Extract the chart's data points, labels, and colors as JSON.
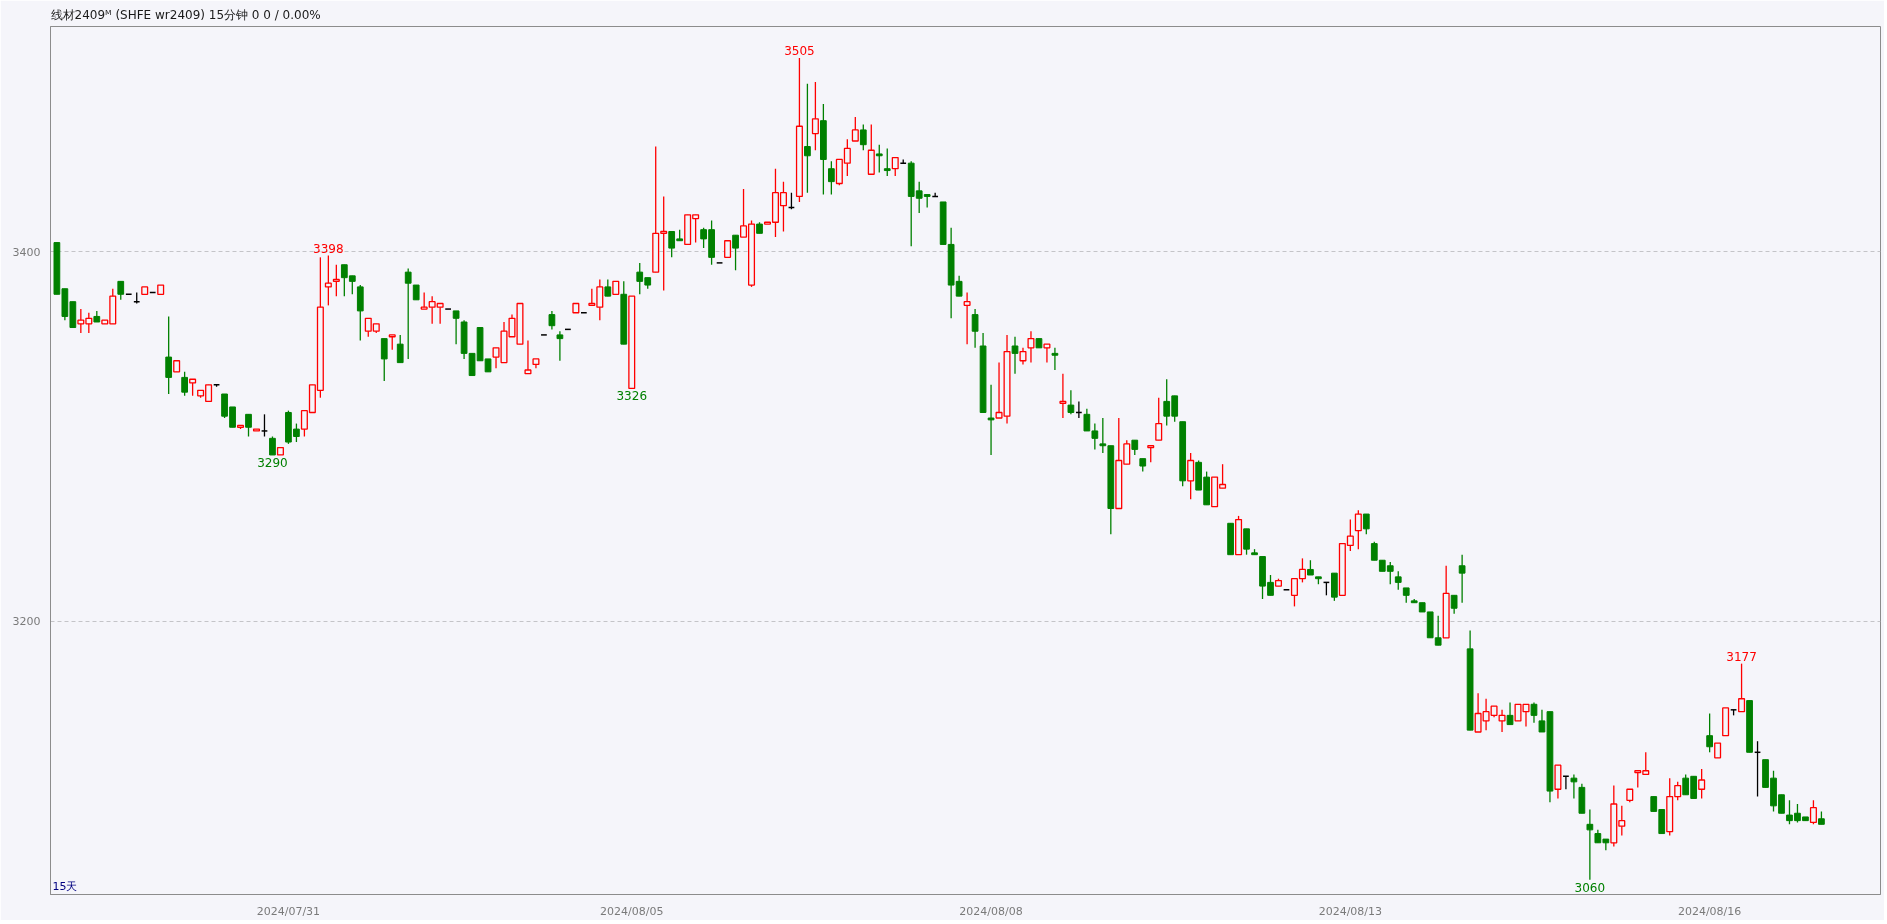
{
  "chart_data": {
    "type": "candlestick",
    "title": "线材2409ᴹ (SHFE wr2409)  15分钟   0   0 / 0.00%",
    "categories": [
      null,
      null,
      null,
      null,
      null,
      null,
      null,
      null,
      null,
      null,
      null,
      null,
      null,
      null,
      null,
      null,
      null,
      null,
      null,
      null,
      null,
      null,
      null,
      null,
      null,
      null,
      null,
      null,
      null,
      "2024/07/31",
      null,
      null,
      null,
      null,
      null,
      null,
      null,
      null,
      null,
      null,
      null,
      null,
      null,
      null,
      null,
      null,
      null,
      null,
      null,
      null,
      null,
      null,
      null,
      null,
      null,
      null,
      null,
      null,
      null,
      null,
      null,
      null,
      null,
      null,
      null,
      null,
      null,
      null,
      null,
      null,
      null,
      null,
      "2024/08/05",
      null,
      null,
      null,
      null,
      null,
      null,
      null,
      null,
      null,
      null,
      null,
      null,
      null,
      null,
      null,
      null,
      null,
      null,
      null,
      null,
      null,
      null,
      null,
      null,
      null,
      null,
      null,
      null,
      null,
      null,
      null,
      null,
      null,
      null,
      null,
      null,
      null,
      null,
      null,
      null,
      null,
      null,
      null,
      null,
      "2024/08/08",
      null,
      null,
      null,
      null,
      null,
      null,
      null,
      null,
      null,
      null,
      null,
      null,
      null,
      null,
      null,
      null,
      null,
      null,
      null,
      null,
      null,
      null,
      null,
      null,
      null,
      null,
      null,
      null,
      null,
      null,
      null,
      null,
      null,
      null,
      null,
      null,
      null,
      null,
      null,
      null,
      null,
      null,
      null,
      null,
      "2024/08/13",
      null,
      null,
      null,
      null,
      null,
      null,
      null,
      null,
      null,
      null,
      null,
      null,
      null,
      null,
      null,
      null,
      null,
      null,
      null,
      null,
      null,
      null,
      null,
      null,
      null,
      null,
      null,
      null,
      null,
      null,
      null,
      null,
      null,
      null,
      null,
      null,
      null,
      null,
      null,
      null,
      null,
      null,
      null,
      null,
      "2024/08/16",
      null,
      null,
      null,
      null,
      null,
      null,
      null,
      null,
      null,
      null,
      null,
      null,
      null,
      null
    ],
    "ohlc": [
      [
        3405,
        3405,
        3377,
        3377
      ],
      [
        3380,
        3380,
        3363,
        3365
      ],
      [
        3373,
        3373,
        3359,
        3359
      ],
      [
        3361,
        3369,
        3356,
        3363
      ],
      [
        3361,
        3367,
        3356,
        3364
      ],
      [
        3365,
        3368,
        3362,
        3362
      ],
      [
        3361,
        3363,
        3361,
        3363
      ],
      [
        3361,
        3380,
        3361,
        3376
      ],
      [
        3384,
        3384,
        3374,
        3377
      ],
      [
        3377,
        3377,
        3377,
        3377
      ],
      [
        3373,
        3378,
        3372,
        3373
      ],
      [
        3377,
        3381,
        3377,
        3381
      ],
      [
        3378,
        3378,
        3378,
        3378
      ],
      [
        3377,
        3382,
        3377,
        3382
      ],
      [
        3343,
        3365,
        3323,
        3332
      ],
      [
        3335,
        3341,
        3335,
        3341
      ],
      [
        3332,
        3335,
        3322,
        3324
      ],
      [
        3329,
        3331,
        3322,
        3331
      ],
      [
        3322,
        3325,
        3321,
        3325
      ],
      [
        3319,
        3328,
        3319,
        3328
      ],
      [
        3328,
        3328,
        3327,
        3328
      ],
      [
        3323,
        3323,
        3310,
        3311
      ],
      [
        3316,
        3316,
        3305,
        3305
      ],
      [
        3305,
        3306,
        3304,
        3306
      ],
      [
        3312,
        3312,
        3300,
        3305
      ],
      [
        3303,
        3304,
        3303,
        3304
      ],
      [
        3303,
        3312,
        3300,
        3303
      ],
      [
        3299,
        3300,
        3290,
        3290
      ],
      [
        3290,
        3294,
        3290,
        3294
      ],
      [
        3313,
        3314,
        3296,
        3297
      ],
      [
        3304,
        3307,
        3297,
        3300
      ],
      [
        3304,
        3314,
        3300,
        3314
      ],
      [
        3313,
        3328,
        3313,
        3328
      ],
      [
        3325,
        3397,
        3321,
        3370
      ],
      [
        3381,
        3398,
        3371,
        3383
      ],
      [
        3384,
        3393,
        3376,
        3385
      ],
      [
        3393,
        3393,
        3376,
        3386
      ],
      [
        3387,
        3387,
        3377,
        3384
      ],
      [
        3381,
        3382,
        3352,
        3368
      ],
      [
        3357,
        3364,
        3354,
        3364
      ],
      [
        3357,
        3361,
        3356,
        3361
      ],
      [
        3353,
        3353,
        3330,
        3342
      ],
      [
        3354,
        3355,
        3347,
        3355
      ],
      [
        3350,
        3355,
        3340,
        3340
      ],
      [
        3389,
        3391,
        3342,
        3383
      ],
      [
        3382,
        3382,
        3374,
        3374
      ],
      [
        3369,
        3378,
        3369,
        3370
      ],
      [
        3370,
        3376,
        3361,
        3373
      ],
      [
        3370,
        3372,
        3361,
        3372
      ],
      [
        3369,
        3369,
        3369,
        3369
      ],
      [
        3368,
        3368,
        3350,
        3364
      ],
      [
        3362,
        3363,
        3342,
        3345
      ],
      [
        3345,
        3345,
        3333,
        3333
      ],
      [
        3359,
        3359,
        3341,
        3341
      ],
      [
        3342,
        3342,
        3335,
        3335
      ],
      [
        3343,
        3348,
        3337,
        3348
      ],
      [
        3340,
        3362,
        3340,
        3357
      ],
      [
        3354,
        3366,
        3354,
        3364
      ],
      [
        3350,
        3372,
        3350,
        3372
      ],
      [
        3334,
        3352,
        3334,
        3336
      ],
      [
        3339,
        3342,
        3337,
        3342
      ],
      [
        3355,
        3355,
        3355,
        3355
      ],
      [
        3366,
        3368,
        3358,
        3360
      ],
      [
        3355,
        3357,
        3341,
        3353
      ],
      [
        3358,
        3358,
        3358,
        3358
      ],
      [
        3367,
        3372,
        3367,
        3372
      ],
      [
        3367,
        3367,
        3367,
        3367
      ],
      [
        3371,
        3380,
        3371,
        3372
      ],
      [
        3370,
        3385,
        3363,
        3381
      ],
      [
        3381,
        3385,
        3376,
        3376
      ],
      [
        3377,
        3384,
        3377,
        3384
      ],
      [
        3377,
        3384,
        3350,
        3350
      ],
      [
        3326,
        3376,
        3326,
        3376
      ],
      [
        3389,
        3394,
        3377,
        3384
      ],
      [
        3386,
        3386,
        3380,
        3382
      ],
      [
        3389,
        3457,
        3389,
        3410
      ],
      [
        3410,
        3430,
        3379,
        3411
      ],
      [
        3411,
        3411,
        3397,
        3402
      ],
      [
        3407,
        3412,
        3406,
        3406
      ],
      [
        3404,
        3420,
        3404,
        3420
      ],
      [
        3418,
        3420,
        3405,
        3420
      ],
      [
        3412,
        3413,
        3402,
        3407
      ],
      [
        3412,
        3417,
        3393,
        3397
      ],
      [
        3394,
        3394,
        3394,
        3394
      ],
      [
        3397,
        3406,
        3397,
        3406
      ],
      [
        3409,
        3409,
        3390,
        3402
      ],
      [
        3408,
        3434,
        3408,
        3414
      ],
      [
        3382,
        3417,
        3381,
        3415
      ],
      [
        3415,
        3416,
        3410,
        3410
      ],
      [
        3415,
        3416,
        3415,
        3416
      ],
      [
        3416,
        3445,
        3408,
        3432
      ],
      [
        3425,
        3438,
        3411,
        3432
      ],
      [
        3424,
        3432,
        3423,
        3424
      ],
      [
        3430,
        3505,
        3427,
        3468
      ],
      [
        3457,
        3491,
        3432,
        3452
      ],
      [
        3464,
        3492,
        3455,
        3472
      ],
      [
        3471,
        3480,
        3431,
        3450
      ],
      [
        3445,
        3449,
        3431,
        3438
      ],
      [
        3437,
        3450,
        3436,
        3450
      ],
      [
        3448,
        3461,
        3441,
        3456
      ],
      [
        3460,
        3473,
        3460,
        3466
      ],
      [
        3466,
        3469,
        3455,
        3458
      ],
      [
        3442,
        3469,
        3442,
        3455
      ],
      [
        3453,
        3458,
        3443,
        3452
      ],
      [
        3445,
        3456,
        3441,
        3444
      ],
      [
        3445,
        3451,
        3441,
        3451
      ],
      [
        3448,
        3450,
        3448,
        3448
      ],
      [
        3448,
        3449,
        3403,
        3430
      ],
      [
        3433,
        3438,
        3421,
        3429
      ],
      [
        3431,
        3431,
        3424,
        3430
      ],
      [
        3430,
        3432,
        3430,
        3430
      ],
      [
        3427,
        3427,
        3404,
        3404
      ],
      [
        3404,
        3413,
        3364,
        3382
      ],
      [
        3384,
        3387,
        3376,
        3376
      ],
      [
        3371,
        3378,
        3350,
        3373
      ],
      [
        3366,
        3369,
        3348,
        3357
      ],
      [
        3349,
        3356,
        3313,
        3313
      ],
      [
        3310,
        3328,
        3290,
        3309
      ],
      [
        3310,
        3340,
        3310,
        3313
      ],
      [
        3311,
        3355,
        3307,
        3346
      ],
      [
        3349,
        3354,
        3334,
        3345
      ],
      [
        3341,
        3348,
        3339,
        3346
      ],
      [
        3348,
        3357,
        3340,
        3353
      ],
      [
        3353,
        3353,
        3348,
        3348
      ],
      [
        3348,
        3350,
        3340,
        3350
      ],
      [
        3345,
        3348,
        3336,
        3344
      ],
      [
        3318,
        3334,
        3310,
        3319
      ],
      [
        3317,
        3325,
        3312,
        3313
      ],
      [
        3313,
        3319,
        3310,
        3313
      ],
      [
        3312,
        3315,
        3303,
        3303
      ],
      [
        3303,
        3307,
        3293,
        3299
      ],
      [
        3296,
        3310,
        3291,
        3295
      ],
      [
        3295,
        3295,
        3247,
        3261
      ],
      [
        3261,
        3310,
        3261,
        3287
      ],
      [
        3285,
        3298,
        3285,
        3296
      ],
      [
        3298,
        3298,
        3290,
        3293
      ],
      [
        3288,
        3288,
        3281,
        3284
      ],
      [
        3294,
        3295,
        3286,
        3295
      ],
      [
        3298,
        3321,
        3298,
        3307
      ],
      [
        3319,
        3331,
        3306,
        3311
      ],
      [
        3322,
        3322,
        3308,
        3311
      ],
      [
        3308,
        3308,
        3273,
        3276
      ],
      [
        3276,
        3291,
        3266,
        3287
      ],
      [
        3286,
        3287,
        3271,
        3271
      ],
      [
        3278,
        3281,
        3263,
        3263
      ],
      [
        3262,
        3278,
        3262,
        3278
      ],
      [
        3272,
        3285,
        3272,
        3274
      ],
      [
        3253,
        3253,
        3236,
        3236
      ],
      [
        3236,
        3257,
        3236,
        3255
      ],
      [
        3250,
        3250,
        3236,
        3239
      ],
      [
        3237,
        3239,
        3236,
        3236
      ],
      [
        3235,
        3235,
        3212,
        3219
      ],
      [
        3221,
        3225,
        3214,
        3214
      ],
      [
        3219,
        3223,
        3219,
        3222
      ],
      [
        3217,
        3217,
        3217,
        3217
      ],
      [
        3214,
        3223,
        3208,
        3223
      ],
      [
        3223,
        3234,
        3221,
        3228
      ],
      [
        3228,
        3233,
        3225,
        3225
      ],
      [
        3224,
        3224,
        3220,
        3223
      ],
      [
        3221,
        3221,
        3214,
        3221
      ],
      [
        3226,
        3226,
        3211,
        3213
      ],
      [
        3214,
        3242,
        3214,
        3242
      ],
      [
        3241,
        3255,
        3238,
        3246
      ],
      [
        3249,
        3260,
        3239,
        3258
      ],
      [
        3258,
        3258,
        3247,
        3250
      ],
      [
        3242,
        3243,
        3233,
        3233
      ],
      [
        3233,
        3233,
        3227,
        3227
      ],
      [
        3230,
        3232,
        3220,
        3227
      ],
      [
        3224,
        3227,
        3217,
        3221
      ],
      [
        3218,
        3218,
        3210,
        3214
      ],
      [
        3211,
        3212,
        3210,
        3210
      ],
      [
        3210,
        3210,
        3205,
        3205
      ],
      [
        3205,
        3205,
        3191,
        3191
      ],
      [
        3191,
        3203,
        3187,
        3187
      ],
      [
        3191,
        3230,
        3191,
        3215
      ],
      [
        3214,
        3214,
        3204,
        3207
      ],
      [
        3230,
        3236,
        3210,
        3226
      ],
      [
        3185,
        3195,
        3141,
        3141
      ],
      [
        3140,
        3161,
        3140,
        3150
      ],
      [
        3146,
        3158,
        3141,
        3151
      ],
      [
        3149,
        3154,
        3148,
        3154
      ],
      [
        3146,
        3152,
        3140,
        3149
      ],
      [
        3149,
        3156,
        3144,
        3144
      ],
      [
        3146,
        3155,
        3146,
        3155
      ],
      [
        3151,
        3155,
        3143,
        3155
      ],
      [
        3155,
        3156,
        3145,
        3149
      ],
      [
        3146,
        3152,
        3140,
        3140
      ],
      [
        3151,
        3151,
        3102,
        3108
      ],
      [
        3109,
        3122,
        3104,
        3122
      ],
      [
        3116,
        3116,
        3109,
        3116
      ],
      [
        3115,
        3117,
        3104,
        3113
      ],
      [
        3110,
        3112,
        3096,
        3096
      ],
      [
        3090,
        3098,
        3060,
        3087
      ],
      [
        3085,
        3087,
        3080,
        3080
      ],
      [
        3082,
        3082,
        3076,
        3080
      ],
      [
        3080,
        3111,
        3078,
        3101
      ],
      [
        3089,
        3100,
        3084,
        3092
      ],
      [
        3103,
        3109,
        3102,
        3109
      ],
      [
        3118,
        3119,
        3110,
        3119
      ],
      [
        3117,
        3129,
        3117,
        3119
      ],
      [
        3105,
        3105,
        3097,
        3097
      ],
      [
        3098,
        3098,
        3085,
        3085
      ],
      [
        3086,
        3115,
        3084,
        3105
      ],
      [
        3105,
        3113,
        3103,
        3111
      ],
      [
        3115,
        3117,
        3106,
        3106
      ],
      [
        3116,
        3116,
        3104,
        3104
      ],
      [
        3109,
        3120,
        3104,
        3114
      ],
      [
        3138,
        3150,
        3129,
        3132
      ],
      [
        3126,
        3134,
        3126,
        3134
      ],
      [
        3138,
        3153,
        3138,
        3153
      ],
      [
        3152,
        3152,
        3149,
        3152
      ],
      [
        3151,
        3177,
        3151,
        3158
      ],
      [
        3157,
        3157,
        3129,
        3129
      ],
      [
        3129,
        3135,
        3105,
        3129
      ],
      [
        3125,
        3125,
        3110,
        3110
      ],
      [
        3115,
        3119,
        3097,
        3100
      ],
      [
        3106,
        3106,
        3096,
        3096
      ],
      [
        3095,
        3103,
        3090,
        3092
      ],
      [
        3096,
        3101,
        3091,
        3092
      ],
      [
        3094,
        3094,
        3092,
        3092
      ],
      [
        3091,
        3103,
        3090,
        3099
      ],
      [
        3093,
        3097,
        3090,
        3090
      ]
    ],
    "colors": [
      "#008000",
      "#008000",
      "#008000",
      "#ff0000",
      "#ff0000",
      "#008000",
      "#ff0000",
      "#ff0000",
      "#008000",
      "#000000",
      "#000000",
      "#ff0000",
      "#000000",
      "#ff0000",
      "#008000",
      "#ff0000",
      "#008000",
      "#ff0000",
      "#ff0000",
      "#ff0000",
      "#000000",
      "#008000",
      "#008000",
      "#ff0000",
      "#008000",
      "#ff0000",
      "#000000",
      "#008000",
      "#ff0000",
      "#008000",
      "#008000",
      "#ff0000",
      "#ff0000",
      "#ff0000",
      "#ff0000",
      "#ff0000",
      "#008000",
      "#008000",
      "#008000",
      "#ff0000",
      "#ff0000",
      "#008000",
      "#ff0000",
      "#008000",
      "#008000",
      "#008000",
      "#ff0000",
      "#ff0000",
      "#ff0000",
      "#000000",
      "#008000",
      "#008000",
      "#008000",
      "#008000",
      "#008000",
      "#ff0000",
      "#ff0000",
      "#ff0000",
      "#ff0000",
      "#ff0000",
      "#ff0000",
      "#000000",
      "#008000",
      "#008000",
      "#000000",
      "#ff0000",
      "#000000",
      "#ff0000",
      "#ff0000",
      "#008000",
      "#ff0000",
      "#008000",
      "#ff0000",
      "#008000",
      "#008000",
      "#ff0000",
      "#ff0000",
      "#008000",
      "#008000",
      "#ff0000",
      "#ff0000",
      "#008000",
      "#008000",
      "#000000",
      "#ff0000",
      "#008000",
      "#ff0000",
      "#ff0000",
      "#008000",
      "#ff0000",
      "#ff0000",
      "#ff0000",
      "#000000",
      "#ff0000",
      "#008000",
      "#ff0000",
      "#008000",
      "#008000",
      "#ff0000",
      "#ff0000",
      "#ff0000",
      "#008000",
      "#ff0000",
      "#008000",
      "#008000",
      "#ff0000",
      "#000000",
      "#008000",
      "#008000",
      "#008000",
      "#000000",
      "#008000",
      "#008000",
      "#008000",
      "#ff0000",
      "#008000",
      "#008000",
      "#008000",
      "#ff0000",
      "#ff0000",
      "#008000",
      "#ff0000",
      "#ff0000",
      "#008000",
      "#ff0000",
      "#008000",
      "#ff0000",
      "#008000",
      "#000000",
      "#008000",
      "#008000",
      "#008000",
      "#008000",
      "#ff0000",
      "#ff0000",
      "#008000",
      "#008000",
      "#ff0000",
      "#ff0000",
      "#008000",
      "#008000",
      "#008000",
      "#ff0000",
      "#008000",
      "#008000",
      "#ff0000",
      "#ff0000",
      "#008000",
      "#ff0000",
      "#008000",
      "#008000",
      "#008000",
      "#008000",
      "#ff0000",
      "#000000",
      "#ff0000",
      "#ff0000",
      "#008000",
      "#008000",
      "#000000",
      "#008000",
      "#ff0000",
      "#ff0000",
      "#ff0000",
      "#008000",
      "#008000",
      "#008000",
      "#008000",
      "#008000",
      "#008000",
      "#008000",
      "#008000",
      "#008000",
      "#008000",
      "#ff0000",
      "#008000",
      "#008000",
      "#008000",
      "#ff0000",
      "#ff0000",
      "#ff0000",
      "#ff0000",
      "#008000",
      "#ff0000",
      "#ff0000",
      "#008000",
      "#008000",
      "#008000",
      "#ff0000",
      "#000000",
      "#008000",
      "#008000",
      "#008000",
      "#008000",
      "#008000",
      "#ff0000",
      "#ff0000",
      "#ff0000",
      "#ff0000",
      "#ff0000",
      "#008000",
      "#008000",
      "#ff0000",
      "#ff0000",
      "#008000",
      "#008000",
      "#ff0000",
      "#008000",
      "#ff0000",
      "#ff0000",
      "#000000",
      "#ff0000",
      "#008000",
      "#000000",
      "#008000",
      "#008000",
      "#008000",
      "#008000",
      "#008000",
      "#008000",
      "#ff0000",
      "#008000"
    ],
    "ylim": [
      3052,
      3522
    ],
    "yticks": [
      3200,
      3400
    ],
    "grid": "y",
    "annotations": [
      {
        "text": "3398",
        "y": 3398
      },
      {
        "text": "3290",
        "y": 3290
      },
      {
        "text": "3326",
        "y": 3326
      },
      {
        "text": "3505",
        "y": 3505
      },
      {
        "text": "3177",
        "y": 3177
      },
      {
        "text": "3060",
        "y": 3060
      },
      "15天"
    ]
  }
}
